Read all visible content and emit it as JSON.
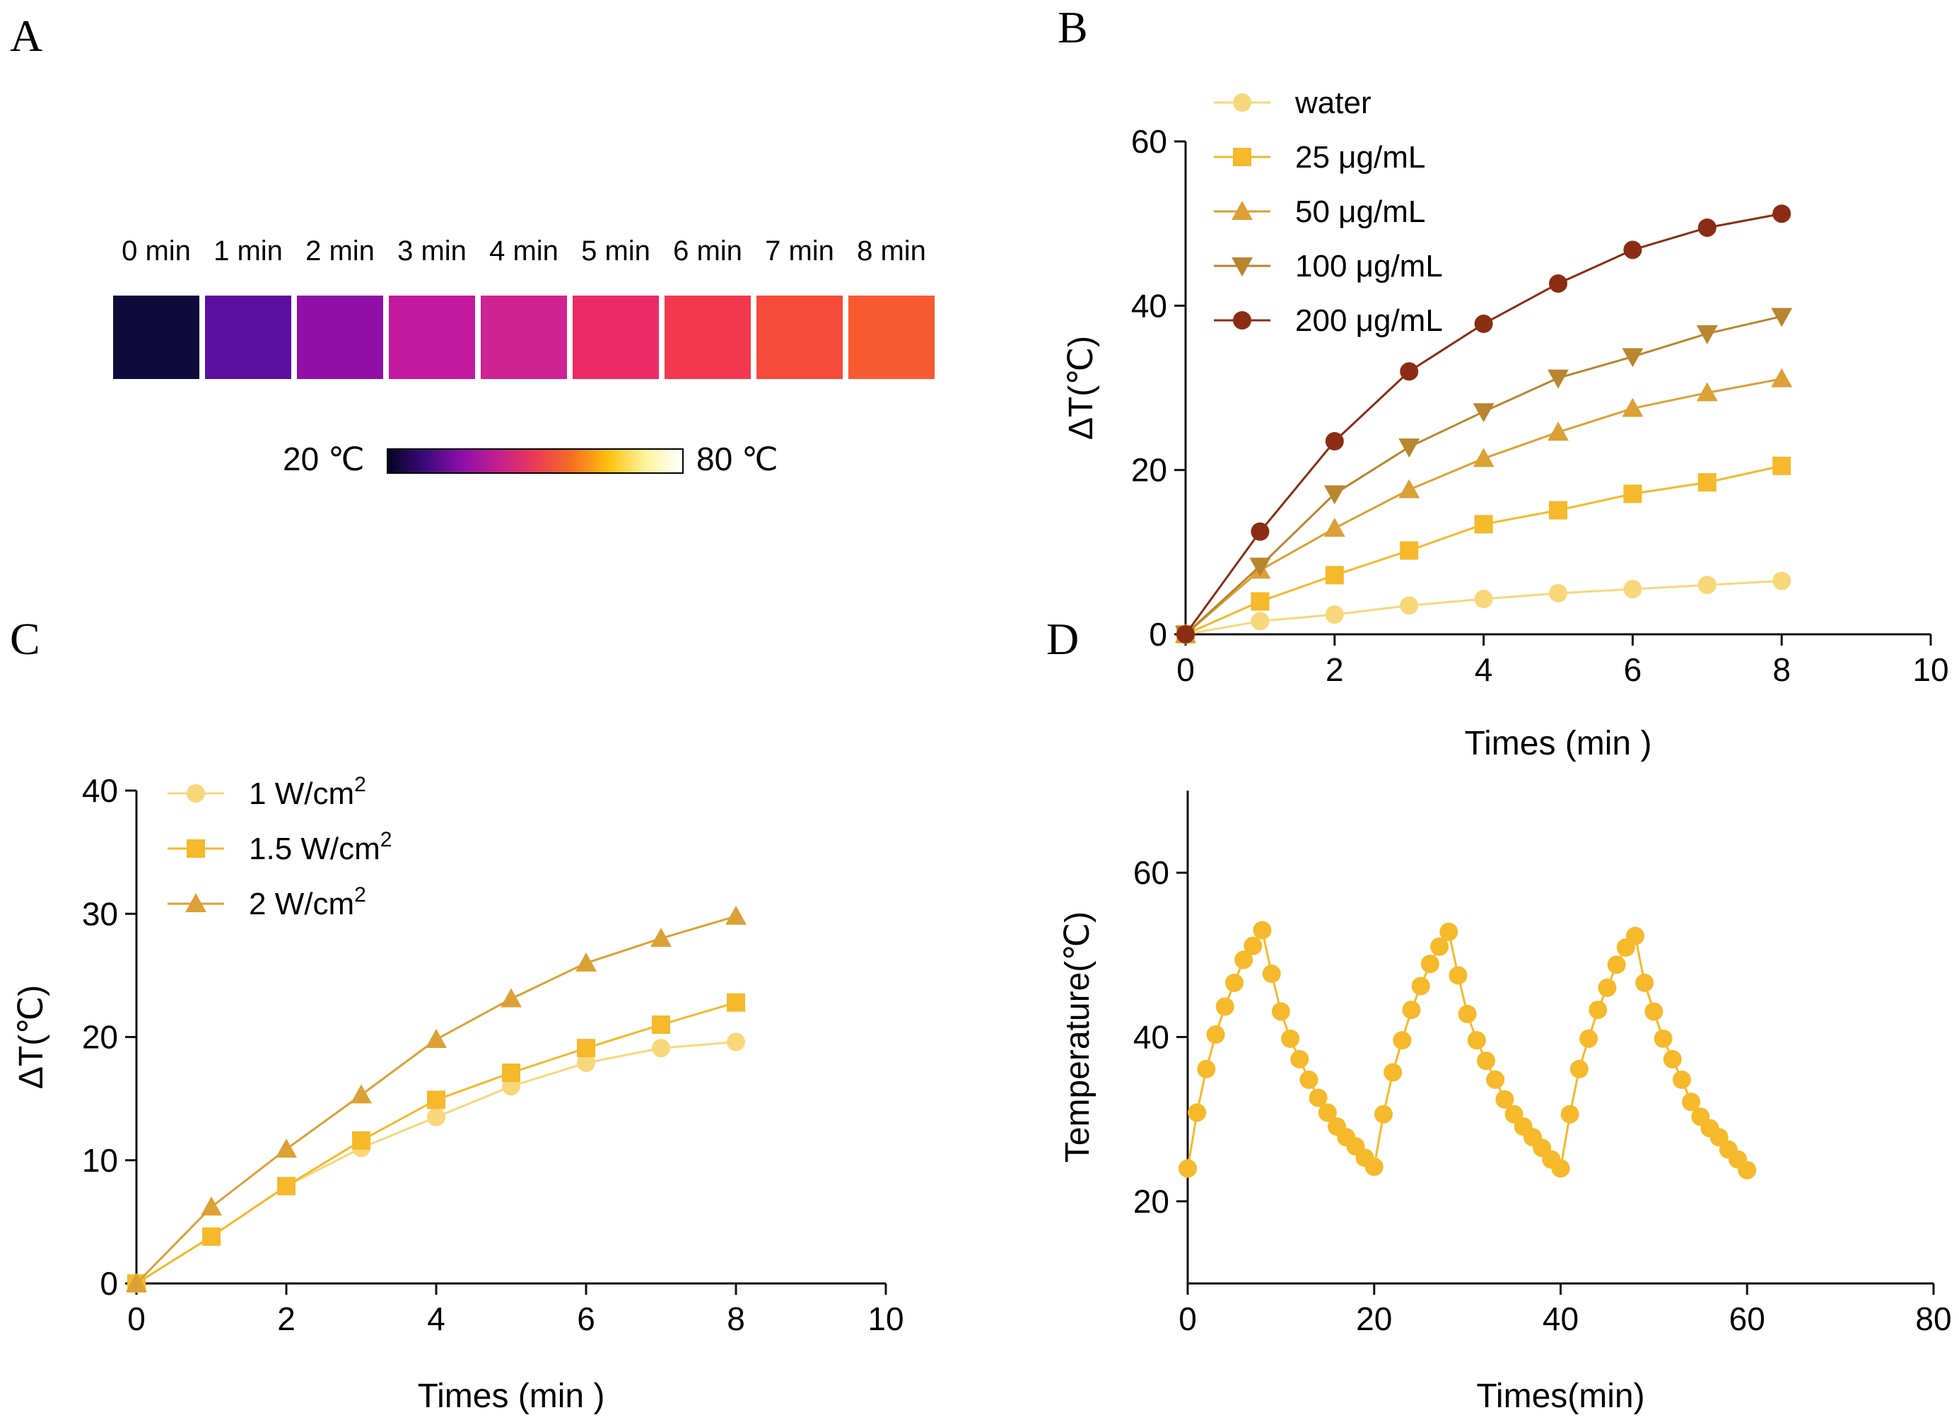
{
  "panels": {
    "A": "A",
    "B": "B",
    "C": "C",
    "D": "D"
  },
  "thermal_strip": {
    "time_labels": [
      "0 min",
      "1 min",
      "2 min",
      "3 min",
      "4 min",
      "5 min",
      "6 min",
      "7 min",
      "8 min"
    ],
    "tile_colors": [
      "#0f0a3c",
      "#5b0fa0",
      "#900fa8",
      "#c219a0",
      "#cf2293",
      "#ec2a68",
      "#f2384e",
      "#f64a3a",
      "#f65a30"
    ],
    "colorbar": {
      "min_label": "20 ℃",
      "max_label": "80 ℃",
      "stops": [
        "#050321",
        "#3b0a7a",
        "#8a0fa8",
        "#c41f90",
        "#ea3a55",
        "#f76f22",
        "#fbc20f",
        "#fdf5a0",
        "#ffffff"
      ]
    }
  },
  "chart_data": [
    {
      "id": "B",
      "type": "line",
      "x": [
        0,
        1,
        2,
        3,
        4,
        5,
        6,
        7,
        8
      ],
      "series": [
        {
          "name": "water",
          "marker": "circle",
          "color": "#f8d77a",
          "values": [
            0,
            1.6,
            2.4,
            3.5,
            4.3,
            5.0,
            5.5,
            6.0,
            6.5
          ]
        },
        {
          "name": "25 μg/mL",
          "marker": "square",
          "color": "#f5b92b",
          "values": [
            0,
            4.0,
            7.2,
            10.2,
            13.4,
            15.1,
            17.1,
            18.5,
            20.5
          ]
        },
        {
          "name": "50 μg/mL",
          "marker": "triangle-up",
          "color": "#dca035",
          "values": [
            0,
            7.8,
            12.9,
            17.6,
            21.4,
            24.6,
            27.5,
            29.4,
            31.1
          ]
        },
        {
          "name": "100 μg/mL",
          "marker": "triangle-down",
          "color": "#b8862f",
          "values": [
            0,
            8.3,
            17.1,
            22.8,
            27.1,
            31.2,
            33.8,
            36.6,
            38.7
          ]
        },
        {
          "name": "200 μg/mL",
          "marker": "circle",
          "color": "#8b2d14",
          "values": [
            0,
            12.5,
            23.5,
            32.0,
            37.8,
            42.7,
            46.8,
            49.5,
            51.2
          ]
        }
      ],
      "xlabel": "Times (min )",
      "ylabel": "ΔT(℃)",
      "xlim": [
        0,
        10
      ],
      "ylim": [
        0,
        60
      ],
      "xticks": [
        0,
        2,
        4,
        6,
        8,
        10
      ],
      "yticks": [
        0,
        20,
        40,
        60
      ],
      "legend": "top-left"
    },
    {
      "id": "C",
      "type": "line",
      "x": [
        0,
        1,
        2,
        3,
        4,
        5,
        6,
        7,
        8
      ],
      "series": [
        {
          "name": "1 W/cm",
          "sup": "2",
          "marker": "circle",
          "color": "#f8d77a",
          "values": [
            0,
            3.8,
            7.9,
            11.0,
            13.5,
            16.0,
            17.9,
            19.1,
            19.6
          ]
        },
        {
          "name": "1.5 W/cm",
          "sup": "2",
          "marker": "square",
          "color": "#f5b92b",
          "values": [
            0,
            3.8,
            7.9,
            11.6,
            14.9,
            17.1,
            19.1,
            21.0,
            22.8
          ]
        },
        {
          "name": "2 W/cm",
          "sup": "2",
          "marker": "triangle-up",
          "color": "#dca035",
          "values": [
            0,
            6.2,
            10.9,
            15.3,
            19.8,
            23.1,
            26.0,
            28.0,
            29.8
          ]
        }
      ],
      "xlabel": "Times (min )",
      "ylabel": "ΔT(℃)",
      "xlim": [
        0,
        10
      ],
      "ylim": [
        0,
        40
      ],
      "xticks": [
        0,
        2,
        4,
        6,
        8,
        10
      ],
      "yticks": [
        0,
        10,
        20,
        30,
        40
      ],
      "legend": "top-left"
    },
    {
      "id": "D",
      "type": "line",
      "series": [
        {
          "name": "Temperature",
          "marker": "circle",
          "color": "#f5b92b",
          "x": [
            0,
            1,
            2,
            3,
            4,
            5,
            6,
            7,
            8,
            9,
            10,
            11,
            12,
            13,
            14,
            15,
            16,
            17,
            18,
            19,
            20,
            21,
            22,
            23,
            24,
            25,
            26,
            27,
            28,
            29,
            30,
            31,
            32,
            33,
            34,
            35,
            36,
            37,
            38,
            39,
            40,
            41,
            42,
            43,
            44,
            45,
            46,
            47,
            48,
            49,
            50,
            51,
            52,
            53,
            54,
            55,
            56,
            57,
            58,
            59,
            60
          ],
          "values": [
            24.0,
            30.8,
            36.1,
            40.3,
            43.7,
            46.6,
            49.4,
            51.1,
            53.0,
            47.7,
            43.1,
            39.8,
            37.3,
            34.8,
            32.6,
            30.8,
            29.1,
            27.8,
            26.7,
            25.3,
            24.2,
            30.6,
            35.7,
            39.6,
            43.3,
            46.2,
            48.9,
            51.0,
            52.8,
            47.5,
            42.8,
            39.6,
            37.1,
            34.8,
            32.4,
            30.6,
            29.1,
            27.8,
            26.5,
            25.1,
            24.0,
            30.6,
            36.1,
            39.8,
            43.3,
            46.0,
            48.8,
            50.9,
            52.3,
            46.6,
            43.1,
            39.8,
            37.3,
            34.8,
            32.1,
            30.3,
            28.9,
            27.8,
            26.3,
            25.1,
            23.8
          ]
        }
      ],
      "xlabel": "Times(min)",
      "ylabel": "Temperature(℃)",
      "xlim": [
        0,
        80
      ],
      "ylim": [
        10,
        70
      ],
      "xticks": [
        0,
        20,
        40,
        60,
        80
      ],
      "yticks": [
        20,
        40,
        60
      ]
    }
  ]
}
